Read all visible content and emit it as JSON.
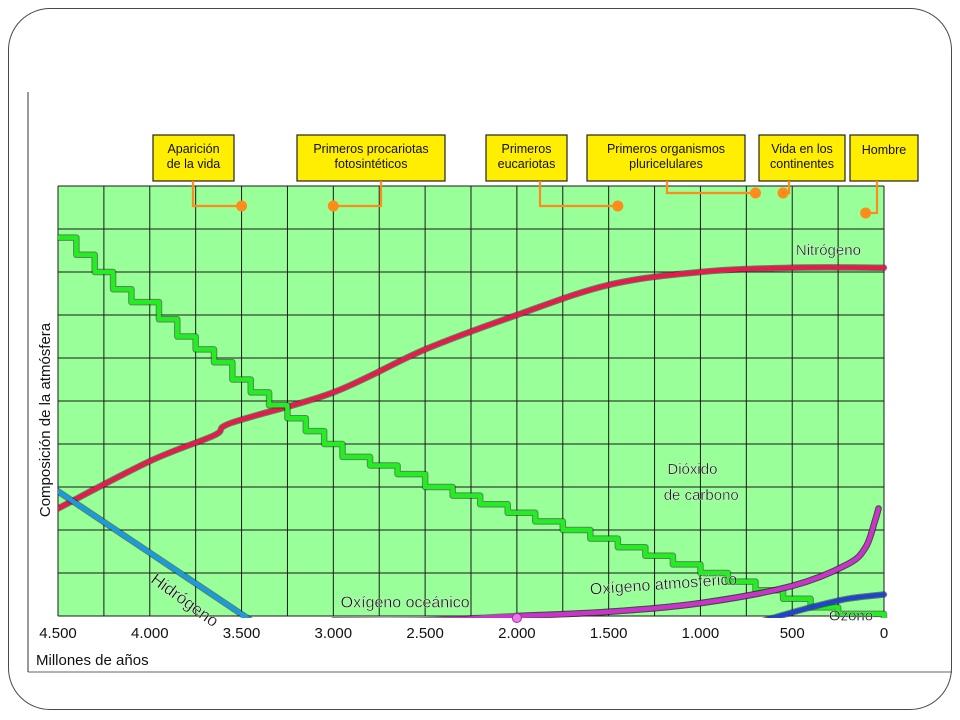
{
  "chart_data": {
    "type": "line",
    "title": "",
    "xlabel": "Millones de años",
    "ylabel": "Composición de la atmósfera",
    "x_reversed": true,
    "xlim": [
      4500,
      0
    ],
    "ylim": [
      0,
      100
    ],
    "x_ticks": [
      {
        "value": 4500,
        "label": "4.500"
      },
      {
        "value": 4000,
        "label": "4.000"
      },
      {
        "value": 3500,
        "label": "3.500"
      },
      {
        "value": 3000,
        "label": "3.000"
      },
      {
        "value": 2500,
        "label": "2.500"
      },
      {
        "value": 2000,
        "label": "2.000"
      },
      {
        "value": 1500,
        "label": "1.500"
      },
      {
        "value": 1000,
        "label": "1.000"
      },
      {
        "value": 500,
        "label": "500"
      },
      {
        "value": 0,
        "label": "0"
      }
    ],
    "grid": true,
    "background_color": "#99ff99",
    "grid_color": "#1a1a1a",
    "series": [
      {
        "name": "Nitrógeno",
        "color": "#e8194e",
        "step": false,
        "points": [
          [
            4500,
            25
          ],
          [
            4000,
            36
          ],
          [
            3650,
            42
          ],
          [
            3550,
            45
          ],
          [
            3000,
            52
          ],
          [
            2500,
            62
          ],
          [
            2000,
            70
          ],
          [
            1500,
            77
          ],
          [
            1000,
            80
          ],
          [
            500,
            81
          ],
          [
            0,
            81
          ]
        ]
      },
      {
        "name": "Dióxido de carbono",
        "color": "#22ee22",
        "step": true,
        "points": [
          [
            4500,
            88
          ],
          [
            4400,
            84
          ],
          [
            4300,
            80
          ],
          [
            4200,
            76
          ],
          [
            4100,
            73
          ],
          [
            3950,
            69
          ],
          [
            3850,
            65
          ],
          [
            3750,
            62
          ],
          [
            3650,
            59
          ],
          [
            3550,
            55
          ],
          [
            3450,
            52
          ],
          [
            3350,
            49
          ],
          [
            3250,
            46
          ],
          [
            3150,
            43
          ],
          [
            3050,
            40
          ],
          [
            2950,
            37
          ],
          [
            2800,
            35
          ],
          [
            2650,
            33
          ],
          [
            2500,
            30
          ],
          [
            2350,
            28
          ],
          [
            2200,
            26
          ],
          [
            2050,
            24
          ],
          [
            1900,
            22
          ],
          [
            1750,
            20
          ],
          [
            1600,
            18
          ],
          [
            1450,
            16
          ],
          [
            1300,
            14
          ],
          [
            1150,
            12
          ],
          [
            1000,
            10
          ],
          [
            850,
            8
          ],
          [
            700,
            6
          ],
          [
            550,
            4
          ],
          [
            400,
            2
          ],
          [
            250,
            0.5
          ],
          [
            0,
            -2
          ]
        ]
      },
      {
        "name": "Hidrógeno",
        "color": "#1a9be0",
        "step": false,
        "points": [
          [
            4500,
            29
          ],
          [
            3450,
            -1
          ]
        ]
      },
      {
        "name": "Oxígeno oceánico",
        "color": "#cc33cc",
        "step": false,
        "points": [
          [
            3000,
            -1
          ],
          [
            2500,
            -1
          ],
          [
            2000,
            0
          ],
          [
            1500,
            1
          ],
          [
            1000,
            3
          ],
          [
            500,
            7
          ],
          [
            200,
            12
          ],
          [
            100,
            16
          ],
          [
            50,
            22
          ],
          [
            30,
            25
          ]
        ]
      },
      {
        "name": "Oxígeno atmosférico",
        "color": "#cc33cc",
        "step": false,
        "points": [
          [
            2000,
            0
          ],
          [
            1500,
            1
          ],
          [
            1000,
            3
          ],
          [
            500,
            7
          ],
          [
            200,
            12
          ],
          [
            100,
            16
          ],
          [
            50,
            22
          ],
          [
            30,
            25
          ]
        ]
      },
      {
        "name": "Ozono",
        "color": "#2244cc",
        "step": false,
        "points": [
          [
            650,
            -1
          ],
          [
            400,
            2
          ],
          [
            200,
            4
          ],
          [
            0,
            5
          ]
        ]
      }
    ],
    "series_labels": [
      {
        "text": "Nitrógeno",
        "x": 480,
        "y": 84
      },
      {
        "text": "Dióxido",
        "x": 1180,
        "y": 33
      },
      {
        "text": "de carbono",
        "x": 1200,
        "y": 27
      },
      {
        "text": "Hidrógeno",
        "x": 4000,
        "y": 8
      },
      {
        "text": "Oxígeno oceánico",
        "x": 2960,
        "y": 2
      },
      {
        "text": "Oxígeno atmosférico",
        "x": 1600,
        "y": 5
      },
      {
        "text": "Ozono",
        "x": 300,
        "y": -1
      }
    ],
    "annotations": [
      {
        "lines": [
          "Aparición",
          "de la vida"
        ],
        "x": 3500
      },
      {
        "lines": [
          "Primeros procariotas",
          "fotosintéticos"
        ],
        "x": 3000
      },
      {
        "lines": [
          "Primeros",
          "eucariotas"
        ],
        "x": 1450
      },
      {
        "lines": [
          "Primeros organismos",
          "pluricelulares"
        ],
        "x": 700
      },
      {
        "lines": [
          "Vida en los",
          "continentes"
        ],
        "x": 550
      },
      {
        "lines": [
          "Hombre"
        ],
        "x": 100
      }
    ],
    "annotation_color": "#ff8c1a",
    "annotation_box_color": "#ffee00"
  }
}
